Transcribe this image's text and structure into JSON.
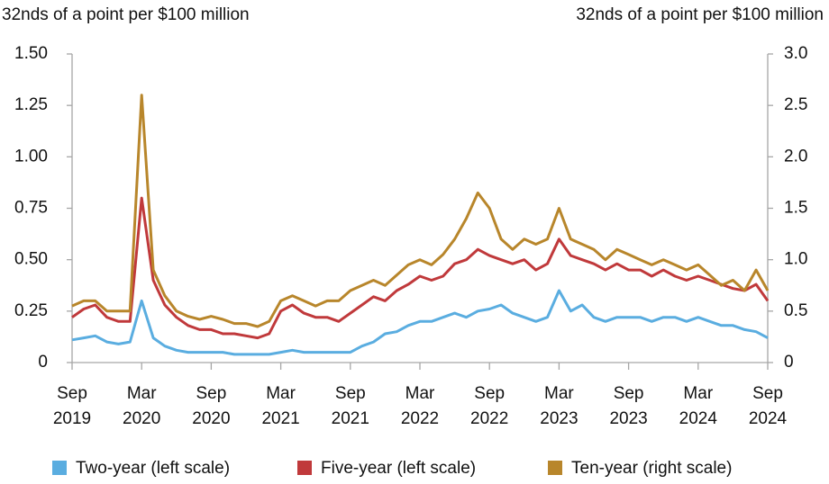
{
  "chart_data": {
    "type": "line",
    "ylabel": "32nds of a point per $100 million",
    "y2label": "32nds of a point per $100 million",
    "x": [
      "2019-09",
      "2019-10",
      "2019-11",
      "2019-12",
      "2020-01",
      "2020-02",
      "2020-03",
      "2020-04",
      "2020-05",
      "2020-06",
      "2020-07",
      "2020-08",
      "2020-09",
      "2020-10",
      "2020-11",
      "2020-12",
      "2021-01",
      "2021-02",
      "2021-03",
      "2021-04",
      "2021-05",
      "2021-06",
      "2021-07",
      "2021-08",
      "2021-09",
      "2021-10",
      "2021-11",
      "2021-12",
      "2022-01",
      "2022-02",
      "2022-03",
      "2022-04",
      "2022-05",
      "2022-06",
      "2022-07",
      "2022-08",
      "2022-09",
      "2022-10",
      "2022-11",
      "2022-12",
      "2023-01",
      "2023-02",
      "2023-03",
      "2023-04",
      "2023-05",
      "2023-06",
      "2023-07",
      "2023-08",
      "2023-09",
      "2023-10",
      "2023-11",
      "2023-12",
      "2024-01",
      "2024-02",
      "2024-03",
      "2024-04",
      "2024-05",
      "2024-06",
      "2024-07",
      "2024-08",
      "2024-09"
    ],
    "xticks": [
      {
        "value": "2019-09",
        "label": [
          "Sep",
          "2019"
        ]
      },
      {
        "value": "2020-03",
        "label": [
          "Mar",
          "2020"
        ]
      },
      {
        "value": "2020-09",
        "label": [
          "Sep",
          "2020"
        ]
      },
      {
        "value": "2021-03",
        "label": [
          "Mar",
          "2021"
        ]
      },
      {
        "value": "2021-09",
        "label": [
          "Sep",
          "2021"
        ]
      },
      {
        "value": "2022-03",
        "label": [
          "Mar",
          "2022"
        ]
      },
      {
        "value": "2022-09",
        "label": [
          "Sep",
          "2022"
        ]
      },
      {
        "value": "2023-03",
        "label": [
          "Mar",
          "2023"
        ]
      },
      {
        "value": "2023-09",
        "label": [
          "Sep",
          "2023"
        ]
      },
      {
        "value": "2024-03",
        "label": [
          "Mar",
          "2024"
        ]
      },
      {
        "value": "2024-09",
        "label": [
          "Sep",
          "2024"
        ]
      }
    ],
    "ylim": [
      0,
      1.5
    ],
    "yticks": [
      {
        "value": 0,
        "label": "0"
      },
      0.25,
      {
        "value": 0.5,
        "label": "0.50"
      },
      0.75,
      {
        "value": 1,
        "label": "1.00"
      },
      1.25,
      {
        "value": 1.5,
        "label": "1.50"
      }
    ],
    "y2lim": [
      0,
      3
    ],
    "y2ticks": [
      {
        "value": 0,
        "label": "0"
      },
      0.5,
      {
        "value": 1,
        "label": "1.0"
      },
      1.5,
      {
        "value": 2,
        "label": "2.0"
      },
      2.5,
      {
        "value": 3,
        "label": "3.0"
      }
    ],
    "grid": false,
    "legend": "bottom",
    "series": [
      {
        "name": "Two-year (left scale)",
        "color": "#5aade0",
        "values": [
          0.11,
          0.12,
          0.13,
          0.1,
          0.09,
          0.1,
          0.3,
          0.12,
          0.08,
          0.06,
          0.05,
          0.05,
          0.05,
          0.05,
          0.04,
          0.04,
          0.04,
          0.04,
          0.05,
          0.06,
          0.05,
          0.05,
          0.05,
          0.05,
          0.05,
          0.08,
          0.1,
          0.14,
          0.15,
          0.18,
          0.2,
          0.2,
          0.22,
          0.24,
          0.22,
          0.25,
          0.26,
          0.28,
          0.24,
          0.22,
          0.2,
          0.22,
          0.35,
          0.25,
          0.28,
          0.22,
          0.2,
          0.22,
          0.22,
          0.22,
          0.2,
          0.22,
          0.22,
          0.2,
          0.22,
          0.2,
          0.18,
          0.18,
          0.16,
          0.15,
          0.12
        ]
      },
      {
        "name": "Five-year (left scale)",
        "color": "#c0393b",
        "values": [
          0.22,
          0.26,
          0.28,
          0.22,
          0.2,
          0.2,
          0.8,
          0.4,
          0.28,
          0.22,
          0.18,
          0.16,
          0.16,
          0.14,
          0.14,
          0.13,
          0.12,
          0.14,
          0.25,
          0.28,
          0.24,
          0.22,
          0.22,
          0.2,
          0.24,
          0.28,
          0.32,
          0.3,
          0.35,
          0.38,
          0.42,
          0.4,
          0.42,
          0.48,
          0.5,
          0.55,
          0.52,
          0.5,
          0.48,
          0.5,
          0.45,
          0.48,
          0.6,
          0.52,
          0.5,
          0.48,
          0.45,
          0.48,
          0.45,
          0.45,
          0.42,
          0.45,
          0.42,
          0.4,
          0.42,
          0.4,
          0.38,
          0.36,
          0.35,
          0.38,
          0.3
        ]
      },
      {
        "name": "Ten-year (right scale)",
        "color": "#b8862b",
        "axis": "y2",
        "values": [
          0.55,
          0.6,
          0.6,
          0.5,
          0.5,
          0.5,
          2.6,
          0.9,
          0.65,
          0.5,
          0.45,
          0.42,
          0.45,
          0.42,
          0.38,
          0.38,
          0.35,
          0.4,
          0.6,
          0.65,
          0.6,
          0.55,
          0.6,
          0.6,
          0.7,
          0.75,
          0.8,
          0.75,
          0.85,
          0.95,
          1.0,
          0.95,
          1.05,
          1.2,
          1.4,
          1.65,
          1.5,
          1.2,
          1.1,
          1.2,
          1.15,
          1.2,
          1.5,
          1.2,
          1.15,
          1.1,
          1.0,
          1.1,
          1.05,
          1.0,
          0.95,
          1.0,
          0.95,
          0.9,
          0.95,
          0.85,
          0.75,
          0.8,
          0.7,
          0.9,
          0.7
        ]
      }
    ]
  }
}
